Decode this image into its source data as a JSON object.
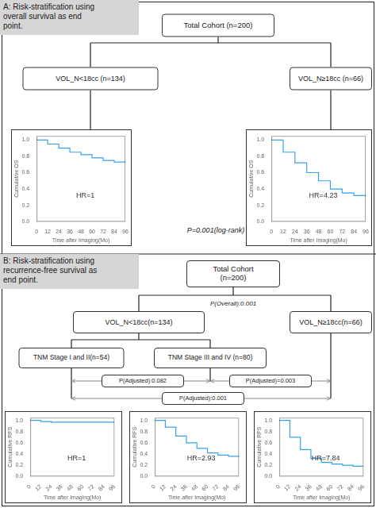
{
  "annotations": [
    "A: Risk-stratification using\noverall survival as end\npoint.",
    "Total Cohort (n=200)",
    "VOL_N<18cc (n=134)",
    "VOL_N≥18cc (n=66)",
    "P=0.001(log-rank)",
    "B: Risk-stratification using\nrecurrence-free survival as\nend point.",
    "Total Cohort\n(n=200)",
    "P(Overall):0.001",
    "VOL_N<18cc(n=134)",
    "VOL_N≥18cc(n=66)",
    "TNM Stage I and II(n=54)",
    "TNM Stage III and IV (n=80)",
    "P(Adjusted):0.082",
    "P(Adjusted)=0.003",
    "P(Adjusted):0.001"
  ],
  "chart_data": [
    {
      "type": "line",
      "x": [
        0,
        12,
        24,
        36,
        48,
        60,
        72,
        84,
        96
      ],
      "values": [
        1.0,
        0.95,
        0.9,
        0.85,
        0.82,
        0.78,
        0.75,
        0.73,
        0.72
      ],
      "xlabel": "Time after Imaging(Mo)",
      "ylabel": "Cumulative OS",
      "annotations": [
        "HR=1"
      ],
      "xlim": [
        0,
        96
      ],
      "xticks": [
        0,
        12,
        24,
        36,
        48,
        60,
        72,
        84,
        96
      ],
      "ylim": [
        0,
        1.05
      ],
      "yticks": [
        {
          "value": 0,
          "label": "0.0"
        },
        {
          "value": 0.2,
          "label": "0.2"
        },
        {
          "value": 0.4,
          "label": "0.4"
        },
        {
          "value": 0.6,
          "label": "0.6"
        },
        {
          "value": 0.8,
          "label": "0.8"
        },
        {
          "value": 1,
          "label": "1.0"
        }
      ],
      "grid": false,
      "line_style": "step",
      "marker": "none"
    },
    {
      "type": "line",
      "x": [
        0,
        12,
        24,
        36,
        48,
        60,
        72,
        84,
        96
      ],
      "values": [
        1.0,
        0.85,
        0.72,
        0.6,
        0.5,
        0.4,
        0.35,
        0.32,
        0.3
      ],
      "xlabel": "Time after Imaging(Mo)",
      "ylabel": "Cumulative OS",
      "annotations": [
        "HR=4.23"
      ],
      "xlim": [
        0,
        96
      ],
      "xticks": [
        0,
        12,
        24,
        36,
        48,
        60,
        72,
        84,
        96
      ],
      "ylim": [
        0,
        1.05
      ],
      "yticks": [
        {
          "value": 0,
          "label": "0.0"
        },
        {
          "value": 0.2,
          "label": "0.2"
        },
        {
          "value": 0.4,
          "label": "0.4"
        },
        {
          "value": 0.6,
          "label": "0.6"
        },
        {
          "value": 0.8,
          "label": "0.8"
        },
        {
          "value": 1,
          "label": "1.0"
        }
      ],
      "grid": false,
      "line_style": "step",
      "marker": "none"
    },
    {
      "type": "line",
      "x": [
        0,
        12,
        24,
        36,
        48,
        60,
        72,
        84,
        96
      ],
      "values": [
        1.0,
        0.98,
        0.97,
        0.97,
        0.97,
        0.97,
        0.97,
        0.97,
        0.97
      ],
      "xlabel": "Time after Imaging(Mo)",
      "ylabel": "Cumulative RFS",
      "annotations": [
        "HR=1"
      ],
      "xlim": [
        0,
        96
      ],
      "xticks": [
        0,
        12,
        24,
        36,
        48,
        60,
        72,
        84,
        96
      ],
      "ylim": [
        0,
        1.05
      ],
      "yticks": [
        {
          "value": 0,
          "label": "0.0"
        },
        {
          "value": 0.2,
          "label": "0.2"
        },
        {
          "value": 0.4,
          "label": "0.4"
        },
        {
          "value": 0.6,
          "label": "0.6"
        },
        {
          "value": 0.8,
          "label": "0.8"
        },
        {
          "value": 1,
          "label": "1.0"
        }
      ],
      "grid": false,
      "line_style": "step",
      "marker": "none"
    },
    {
      "type": "line",
      "x": [
        0,
        12,
        24,
        36,
        48,
        60,
        72,
        84,
        96
      ],
      "values": [
        1.0,
        0.88,
        0.72,
        0.6,
        0.5,
        0.42,
        0.38,
        0.36,
        0.35
      ],
      "xlabel": "Time after Imaging(Mo)",
      "ylabel": "Cumulative RFS",
      "annotations": [
        "HR=2.93"
      ],
      "xlim": [
        0,
        96
      ],
      "xticks": [
        0,
        12,
        24,
        36,
        48,
        60,
        72,
        84,
        96
      ],
      "ylim": [
        0,
        1.05
      ],
      "yticks": [
        {
          "value": 0,
          "label": "0.0"
        },
        {
          "value": 0.2,
          "label": "0.2"
        },
        {
          "value": 0.4,
          "label": "0.4"
        },
        {
          "value": 0.6,
          "label": "0.6"
        },
        {
          "value": 0.8,
          "label": "0.8"
        },
        {
          "value": 1,
          "label": "1.0"
        }
      ],
      "grid": false,
      "line_style": "step",
      "marker": "none"
    },
    {
      "type": "line",
      "x": [
        0,
        12,
        24,
        36,
        48,
        60,
        72,
        84,
        96
      ],
      "values": [
        1.0,
        0.7,
        0.48,
        0.32,
        0.25,
        0.22,
        0.2,
        0.18,
        0.18
      ],
      "xlabel": "Time after Imaging(Mo)",
      "ylabel": "Cumulative RFS",
      "annotations": [
        "HR=7.84"
      ],
      "xlim": [
        0,
        96
      ],
      "xticks": [
        0,
        12,
        24,
        36,
        48,
        60,
        72,
        84,
        96
      ],
      "ylim": [
        0,
        1.05
      ],
      "yticks": [
        {
          "value": 0,
          "label": "0.0"
        },
        {
          "value": 0.2,
          "label": "0.2"
        },
        {
          "value": 0.4,
          "label": "0.4"
        },
        {
          "value": 0.6,
          "label": "0.6"
        },
        {
          "value": 0.8,
          "label": "0.8"
        },
        {
          "value": 1,
          "label": "1.0"
        }
      ],
      "grid": false,
      "line_style": "step",
      "marker": "none"
    }
  ]
}
